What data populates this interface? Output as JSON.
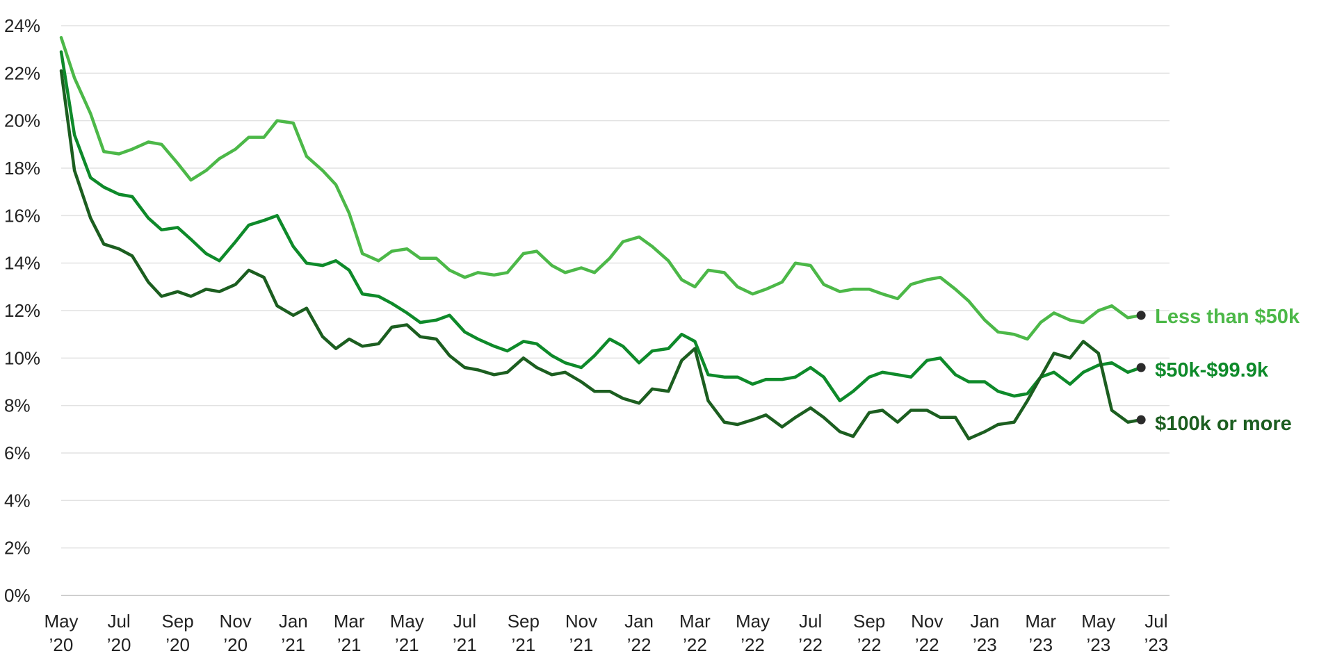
{
  "chart_data": {
    "type": "line",
    "title": "",
    "xlabel": "",
    "ylabel": "",
    "ylim": [
      0,
      24
    ],
    "xlim": [
      "2020-05-01",
      "2023-07-15"
    ],
    "grid": true,
    "legend": "direct labels at right end of lines",
    "y_ticks": [
      0,
      2,
      4,
      6,
      8,
      10,
      12,
      14,
      16,
      18,
      20,
      22,
      24
    ],
    "y_tick_labels": [
      "0%",
      "2%",
      "4%",
      "6%",
      "8%",
      "10%",
      "12%",
      "14%",
      "16%",
      "18%",
      "20%",
      "22%",
      "24%"
    ],
    "x_ticks": [
      {
        "date": "2020-05-01",
        "month": "May",
        "year": "’20"
      },
      {
        "date": "2020-07-01",
        "month": "Jul",
        "year": "’20"
      },
      {
        "date": "2020-09-01",
        "month": "Sep",
        "year": "’20"
      },
      {
        "date": "2020-11-01",
        "month": "Nov",
        "year": "’20"
      },
      {
        "date": "2021-01-01",
        "month": "Jan",
        "year": "’21"
      },
      {
        "date": "2021-03-01",
        "month": "Mar",
        "year": "’21"
      },
      {
        "date": "2021-05-01",
        "month": "May",
        "year": "’21"
      },
      {
        "date": "2021-07-01",
        "month": "Jul",
        "year": "’21"
      },
      {
        "date": "2021-09-01",
        "month": "Sep",
        "year": "’21"
      },
      {
        "date": "2021-11-01",
        "month": "Nov",
        "year": "’21"
      },
      {
        "date": "2022-01-01",
        "month": "Jan",
        "year": "’22"
      },
      {
        "date": "2022-03-01",
        "month": "Mar",
        "year": "’22"
      },
      {
        "date": "2022-05-01",
        "month": "May",
        "year": "’22"
      },
      {
        "date": "2022-07-01",
        "month": "Jul",
        "year": "’22"
      },
      {
        "date": "2022-09-01",
        "month": "Sep",
        "year": "’22"
      },
      {
        "date": "2022-11-01",
        "month": "Nov",
        "year": "’22"
      },
      {
        "date": "2023-01-01",
        "month": "Jan",
        "year": "’23"
      },
      {
        "date": "2023-03-01",
        "month": "Mar",
        "year": "’23"
      },
      {
        "date": "2023-05-01",
        "month": "May",
        "year": "’23"
      },
      {
        "date": "2023-07-01",
        "month": "Jul",
        "year": "’23"
      }
    ],
    "series": [
      {
        "name": "Less than $50k",
        "color": "#4cb848",
        "points": [
          [
            "2020-05-01",
            23.5
          ],
          [
            "2020-05-15",
            21.8
          ],
          [
            "2020-06-01",
            20.3
          ],
          [
            "2020-06-15",
            18.7
          ],
          [
            "2020-07-01",
            18.6
          ],
          [
            "2020-07-15",
            18.8
          ],
          [
            "2020-08-01",
            19.1
          ],
          [
            "2020-08-15",
            19.0
          ],
          [
            "2020-09-01",
            18.2
          ],
          [
            "2020-09-15",
            17.5
          ],
          [
            "2020-10-01",
            17.9
          ],
          [
            "2020-10-15",
            18.4
          ],
          [
            "2020-11-01",
            18.8
          ],
          [
            "2020-11-15",
            19.3
          ],
          [
            "2020-12-01",
            19.3
          ],
          [
            "2020-12-15",
            20.0
          ],
          [
            "2021-01-01",
            19.9
          ],
          [
            "2021-01-15",
            18.5
          ],
          [
            "2021-02-01",
            17.9
          ],
          [
            "2021-02-15",
            17.3
          ],
          [
            "2021-03-01",
            16.1
          ],
          [
            "2021-03-15",
            14.4
          ],
          [
            "2021-04-01",
            14.1
          ],
          [
            "2021-04-15",
            14.5
          ],
          [
            "2021-05-01",
            14.6
          ],
          [
            "2021-05-15",
            14.2
          ],
          [
            "2021-06-01",
            14.2
          ],
          [
            "2021-06-15",
            13.7
          ],
          [
            "2021-07-01",
            13.4
          ],
          [
            "2021-07-15",
            13.6
          ],
          [
            "2021-08-01",
            13.5
          ],
          [
            "2021-08-15",
            13.6
          ],
          [
            "2021-09-01",
            14.4
          ],
          [
            "2021-09-15",
            14.5
          ],
          [
            "2021-10-01",
            13.9
          ],
          [
            "2021-10-15",
            13.6
          ],
          [
            "2021-11-01",
            13.8
          ],
          [
            "2021-11-15",
            13.6
          ],
          [
            "2021-12-01",
            14.2
          ],
          [
            "2021-12-15",
            14.9
          ],
          [
            "2022-01-01",
            15.1
          ],
          [
            "2022-01-15",
            14.7
          ],
          [
            "2022-02-01",
            14.1
          ],
          [
            "2022-02-15",
            13.3
          ],
          [
            "2022-03-01",
            13.0
          ],
          [
            "2022-03-15",
            13.7
          ],
          [
            "2022-04-01",
            13.6
          ],
          [
            "2022-04-15",
            13.0
          ],
          [
            "2022-05-01",
            12.7
          ],
          [
            "2022-05-15",
            12.9
          ],
          [
            "2022-06-01",
            13.2
          ],
          [
            "2022-06-15",
            14.0
          ],
          [
            "2022-07-01",
            13.9
          ],
          [
            "2022-07-15",
            13.1
          ],
          [
            "2022-08-01",
            12.8
          ],
          [
            "2022-08-15",
            12.9
          ],
          [
            "2022-09-01",
            12.9
          ],
          [
            "2022-09-15",
            12.7
          ],
          [
            "2022-10-01",
            12.5
          ],
          [
            "2022-10-15",
            13.1
          ],
          [
            "2022-11-01",
            13.3
          ],
          [
            "2022-11-15",
            13.4
          ],
          [
            "2022-12-01",
            12.9
          ],
          [
            "2022-12-15",
            12.4
          ],
          [
            "2023-01-01",
            11.6
          ],
          [
            "2023-01-15",
            11.1
          ],
          [
            "2023-02-01",
            11.0
          ],
          [
            "2023-02-15",
            10.8
          ],
          [
            "2023-03-01",
            11.5
          ],
          [
            "2023-03-15",
            11.9
          ],
          [
            "2023-04-01",
            11.6
          ],
          [
            "2023-04-15",
            11.5
          ],
          [
            "2023-05-01",
            12.0
          ],
          [
            "2023-05-15",
            12.2
          ],
          [
            "2023-06-01",
            11.7
          ],
          [
            "2023-06-15",
            11.8
          ]
        ]
      },
      {
        "name": "$50k-$99.9k",
        "color": "#0e8a2a",
        "points": [
          [
            "2020-05-01",
            22.9
          ],
          [
            "2020-05-15",
            19.4
          ],
          [
            "2020-06-01",
            17.6
          ],
          [
            "2020-06-15",
            17.2
          ],
          [
            "2020-07-01",
            16.9
          ],
          [
            "2020-07-15",
            16.8
          ],
          [
            "2020-08-01",
            15.9
          ],
          [
            "2020-08-15",
            15.4
          ],
          [
            "2020-09-01",
            15.5
          ],
          [
            "2020-09-15",
            15.0
          ],
          [
            "2020-10-01",
            14.4
          ],
          [
            "2020-10-15",
            14.1
          ],
          [
            "2020-11-01",
            14.9
          ],
          [
            "2020-11-15",
            15.6
          ],
          [
            "2020-12-01",
            15.8
          ],
          [
            "2020-12-15",
            16.0
          ],
          [
            "2021-01-01",
            14.7
          ],
          [
            "2021-01-15",
            14.0
          ],
          [
            "2021-02-01",
            13.9
          ],
          [
            "2021-02-15",
            14.1
          ],
          [
            "2021-03-01",
            13.7
          ],
          [
            "2021-03-15",
            12.7
          ],
          [
            "2021-04-01",
            12.6
          ],
          [
            "2021-04-15",
            12.3
          ],
          [
            "2021-05-01",
            11.9
          ],
          [
            "2021-05-15",
            11.5
          ],
          [
            "2021-06-01",
            11.6
          ],
          [
            "2021-06-15",
            11.8
          ],
          [
            "2021-07-01",
            11.1
          ],
          [
            "2021-07-15",
            10.8
          ],
          [
            "2021-08-01",
            10.5
          ],
          [
            "2021-08-15",
            10.3
          ],
          [
            "2021-09-01",
            10.7
          ],
          [
            "2021-09-15",
            10.6
          ],
          [
            "2021-10-01",
            10.1
          ],
          [
            "2021-10-15",
            9.8
          ],
          [
            "2021-11-01",
            9.6
          ],
          [
            "2021-11-15",
            10.1
          ],
          [
            "2021-12-01",
            10.8
          ],
          [
            "2021-12-15",
            10.5
          ],
          [
            "2022-01-01",
            9.8
          ],
          [
            "2022-01-15",
            10.3
          ],
          [
            "2022-02-01",
            10.4
          ],
          [
            "2022-02-15",
            11.0
          ],
          [
            "2022-03-01",
            10.7
          ],
          [
            "2022-03-15",
            9.3
          ],
          [
            "2022-04-01",
            9.2
          ],
          [
            "2022-04-15",
            9.2
          ],
          [
            "2022-05-01",
            8.9
          ],
          [
            "2022-05-15",
            9.1
          ],
          [
            "2022-06-01",
            9.1
          ],
          [
            "2022-06-15",
            9.2
          ],
          [
            "2022-07-01",
            9.6
          ],
          [
            "2022-07-15",
            9.2
          ],
          [
            "2022-08-01",
            8.2
          ],
          [
            "2022-08-15",
            8.6
          ],
          [
            "2022-09-01",
            9.2
          ],
          [
            "2022-09-15",
            9.4
          ],
          [
            "2022-10-01",
            9.3
          ],
          [
            "2022-10-15",
            9.2
          ],
          [
            "2022-11-01",
            9.9
          ],
          [
            "2022-11-15",
            10.0
          ],
          [
            "2022-12-01",
            9.3
          ],
          [
            "2022-12-15",
            9.0
          ],
          [
            "2023-01-01",
            9.0
          ],
          [
            "2023-01-15",
            8.6
          ],
          [
            "2023-02-01",
            8.4
          ],
          [
            "2023-02-15",
            8.5
          ],
          [
            "2023-03-01",
            9.2
          ],
          [
            "2023-03-15",
            9.4
          ],
          [
            "2023-04-01",
            8.9
          ],
          [
            "2023-04-15",
            9.4
          ],
          [
            "2023-05-01",
            9.7
          ],
          [
            "2023-05-15",
            9.8
          ],
          [
            "2023-06-01",
            9.4
          ],
          [
            "2023-06-15",
            9.6
          ]
        ]
      },
      {
        "name": "$100k or more",
        "color": "#1c5e20",
        "points": [
          [
            "2020-05-01",
            22.1
          ],
          [
            "2020-05-15",
            17.9
          ],
          [
            "2020-06-01",
            15.9
          ],
          [
            "2020-06-15",
            14.8
          ],
          [
            "2020-07-01",
            14.6
          ],
          [
            "2020-07-15",
            14.3
          ],
          [
            "2020-08-01",
            13.2
          ],
          [
            "2020-08-15",
            12.6
          ],
          [
            "2020-09-01",
            12.8
          ],
          [
            "2020-09-15",
            12.6
          ],
          [
            "2020-10-01",
            12.9
          ],
          [
            "2020-10-15",
            12.8
          ],
          [
            "2020-11-01",
            13.1
          ],
          [
            "2020-11-15",
            13.7
          ],
          [
            "2020-12-01",
            13.4
          ],
          [
            "2020-12-15",
            12.2
          ],
          [
            "2021-01-01",
            11.8
          ],
          [
            "2021-01-15",
            12.1
          ],
          [
            "2021-02-01",
            10.9
          ],
          [
            "2021-02-15",
            10.4
          ],
          [
            "2021-03-01",
            10.8
          ],
          [
            "2021-03-15",
            10.5
          ],
          [
            "2021-04-01",
            10.6
          ],
          [
            "2021-04-15",
            11.3
          ],
          [
            "2021-05-01",
            11.4
          ],
          [
            "2021-05-15",
            10.9
          ],
          [
            "2021-06-01",
            10.8
          ],
          [
            "2021-06-15",
            10.1
          ],
          [
            "2021-07-01",
            9.6
          ],
          [
            "2021-07-15",
            9.5
          ],
          [
            "2021-08-01",
            9.3
          ],
          [
            "2021-08-15",
            9.4
          ],
          [
            "2021-09-01",
            10.0
          ],
          [
            "2021-09-15",
            9.6
          ],
          [
            "2021-10-01",
            9.3
          ],
          [
            "2021-10-15",
            9.4
          ],
          [
            "2021-11-01",
            9.0
          ],
          [
            "2021-11-15",
            8.6
          ],
          [
            "2021-12-01",
            8.6
          ],
          [
            "2021-12-15",
            8.3
          ],
          [
            "2022-01-01",
            8.1
          ],
          [
            "2022-01-15",
            8.7
          ],
          [
            "2022-02-01",
            8.6
          ],
          [
            "2022-02-15",
            9.9
          ],
          [
            "2022-03-01",
            10.4
          ],
          [
            "2022-03-15",
            8.2
          ],
          [
            "2022-04-01",
            7.3
          ],
          [
            "2022-04-15",
            7.2
          ],
          [
            "2022-05-01",
            7.4
          ],
          [
            "2022-05-15",
            7.6
          ],
          [
            "2022-06-01",
            7.1
          ],
          [
            "2022-06-15",
            7.5
          ],
          [
            "2022-07-01",
            7.9
          ],
          [
            "2022-07-15",
            7.5
          ],
          [
            "2022-08-01",
            6.9
          ],
          [
            "2022-08-15",
            6.7
          ],
          [
            "2022-09-01",
            7.7
          ],
          [
            "2022-09-15",
            7.8
          ],
          [
            "2022-10-01",
            7.3
          ],
          [
            "2022-10-15",
            7.8
          ],
          [
            "2022-11-01",
            7.8
          ],
          [
            "2022-11-15",
            7.5
          ],
          [
            "2022-12-01",
            7.5
          ],
          [
            "2022-12-15",
            6.6
          ],
          [
            "2023-01-01",
            6.9
          ],
          [
            "2023-01-15",
            7.2
          ],
          [
            "2023-02-01",
            7.3
          ],
          [
            "2023-02-15",
            8.2
          ],
          [
            "2023-03-01",
            9.2
          ],
          [
            "2023-03-15",
            10.2
          ],
          [
            "2023-04-01",
            10.0
          ],
          [
            "2023-04-15",
            10.7
          ],
          [
            "2023-05-01",
            10.2
          ],
          [
            "2023-05-15",
            7.8
          ],
          [
            "2023-06-01",
            7.3
          ],
          [
            "2023-06-15",
            7.4
          ]
        ]
      }
    ]
  }
}
